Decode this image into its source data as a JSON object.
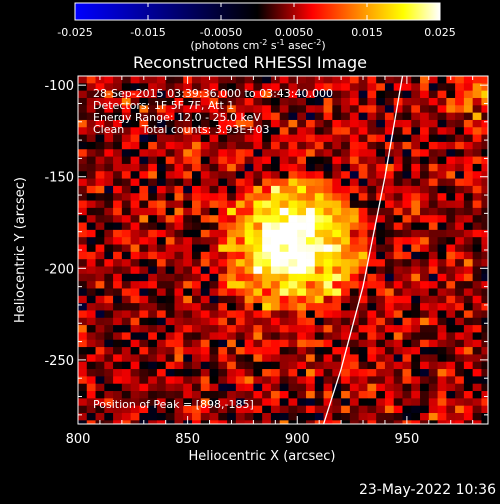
{
  "chart_data": {
    "type": "heatmap",
    "title": "Reconstructed RHESSI Image",
    "xlabel": "Heliocentric X (arcsec)",
    "ylabel": "Heliocentric Y (arcsec)",
    "xlim": [
      800,
      987
    ],
    "ylim": [
      -285,
      -95
    ],
    "x_ticks": [
      "800",
      "850",
      "900",
      "950"
    ],
    "x_tick_values": [
      800,
      850,
      900,
      950
    ],
    "y_ticks": [
      "-100",
      "-150",
      "-200",
      "-250"
    ],
    "y_tick_values": [
      -100,
      -150,
      -200,
      -250
    ],
    "colorbar": {
      "ticks": [
        "-0.025",
        "-0.015",
        "-0.0050",
        "0.0050",
        "0.015",
        "0.025"
      ],
      "tick_values": [
        -0.025,
        -0.015,
        -0.005,
        0.005,
        0.015,
        0.025
      ],
      "range": [
        -0.025,
        0.025
      ],
      "units_prefix": "(photons cm",
      "units_exp1": "-2",
      "units_mid1": " s",
      "units_exp2": "-1",
      "units_mid2": " asec",
      "units_exp3": "-2",
      "units_suffix": ")",
      "colormap": [
        "#0000ff",
        "#000000",
        "#ff0000",
        "#ffa000",
        "#ffff00",
        "#ffffff"
      ]
    },
    "annotations": [
      "28-Sep-2015 03:39:36.000 to 03:43:40.000",
      "Detectors: 1F 5F 7F, Att 1",
      "Energy Range: 12.0 - 25.0 keV",
      "Clean     Total counts: 3.93E+03"
    ],
    "peak_label": "Position of Peak = [898,-185]",
    "peak": [
      898,
      -185
    ],
    "sources": [
      {
        "x": 898,
        "y": -188,
        "sigma_x": 20,
        "sigma_y": 24,
        "amplitude": 0.026
      },
      {
        "x": 984,
        "y": -105,
        "sigma_x": 7,
        "sigma_y": 9,
        "amplitude": 0.011
      },
      {
        "x": 972,
        "y": -286,
        "sigma_x": 6,
        "sigma_y": 6,
        "amplitude": 0.008
      }
    ],
    "background_level": 0.004,
    "limb_curve": {
      "x": [
        948,
        940,
        930,
        920,
        912
      ],
      "y": [
        -95,
        -150,
        -210,
        -255,
        -285
      ]
    }
  },
  "footer": {
    "date": "23-May-2022 10:36"
  },
  "colors": {
    "background": "#000000",
    "text": "#ffffff"
  }
}
